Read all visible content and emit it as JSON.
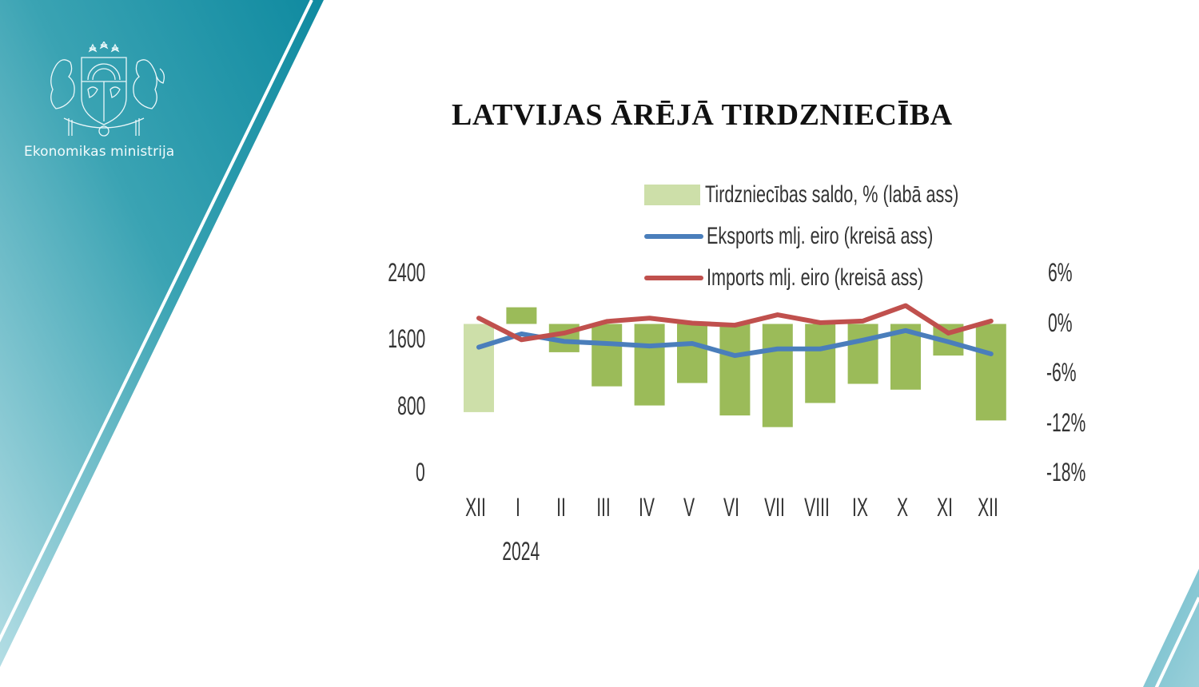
{
  "branding": {
    "ministry_name": "Ekonomikas ministrija",
    "logo": "latvia-coat-of-arms-icon",
    "colors": {
      "teal_dark": "#148ea3",
      "teal_light": "#a9d8e0",
      "stripe": "#ffffff"
    }
  },
  "title": "LATVIJAS ĀRĒJĀ TIRDZNIECĪBA",
  "legend": [
    {
      "label": "Tirdzniecības saldo, % (labā ass)",
      "type": "bar",
      "color": "#9bbb59"
    },
    {
      "label": "Eksports mlj. eiro (kreisā ass)",
      "type": "line",
      "color": "#4a7ebb"
    },
    {
      "label": "Imports mlj. eiro (kreisā ass)",
      "type": "line",
      "color": "#c0504d"
    }
  ],
  "axes": {
    "left_ticks": [
      "2400",
      "1600",
      "800",
      "0"
    ],
    "right_ticks": [
      "6%",
      "0%",
      "-6%",
      "-12%",
      "-18%"
    ],
    "x_ticks": [
      "XII",
      "I",
      "II",
      "III",
      "IV",
      "V",
      "VI",
      "VII",
      "VIII",
      "IX",
      "X",
      "XI",
      "XII"
    ],
    "year_label": "2024"
  },
  "chart_data": {
    "type": "bar",
    "title": "LATVIJAS ĀRĒJĀ TIRDZNIECĪBA",
    "categories": [
      "XII",
      "I",
      "II",
      "III",
      "IV",
      "V",
      "VI",
      "VII",
      "VIII",
      "IX",
      "X",
      "XI",
      "XII"
    ],
    "category_group_label": "2024",
    "series": [
      {
        "name": "Tirdzniecības saldo, % (labā ass)",
        "type": "bar",
        "axis": "right",
        "color": "#9bbb59",
        "first_bar_color": "#cddfa9",
        "values": [
          -10.6,
          2.0,
          -3.4,
          -7.5,
          -9.8,
          -7.1,
          -11.0,
          -12.4,
          -9.5,
          -7.2,
          -7.9,
          -3.8,
          -11.6
        ]
      },
      {
        "name": "Eksports mlj. eiro (kreisā ass)",
        "type": "line",
        "axis": "left",
        "color": "#4a7ebb",
        "values": [
          1520,
          1680,
          1590,
          1565,
          1535,
          1565,
          1420,
          1500,
          1500,
          1605,
          1720,
          1585,
          1440
        ]
      },
      {
        "name": "Imports mlj. eiro (kreisā ass)",
        "type": "line",
        "axis": "left",
        "color": "#c0504d",
        "values": [
          1870,
          1610,
          1690,
          1830,
          1870,
          1810,
          1785,
          1910,
          1815,
          1835,
          2020,
          1690,
          1835
        ]
      }
    ],
    "xlabel": "",
    "ylabel_left": "mlj. eiro",
    "ylabel_right": "%",
    "ylim_left": [
      0,
      2400
    ],
    "ylim_right": [
      -18,
      6
    ],
    "grid": false,
    "legend_position": "top"
  }
}
